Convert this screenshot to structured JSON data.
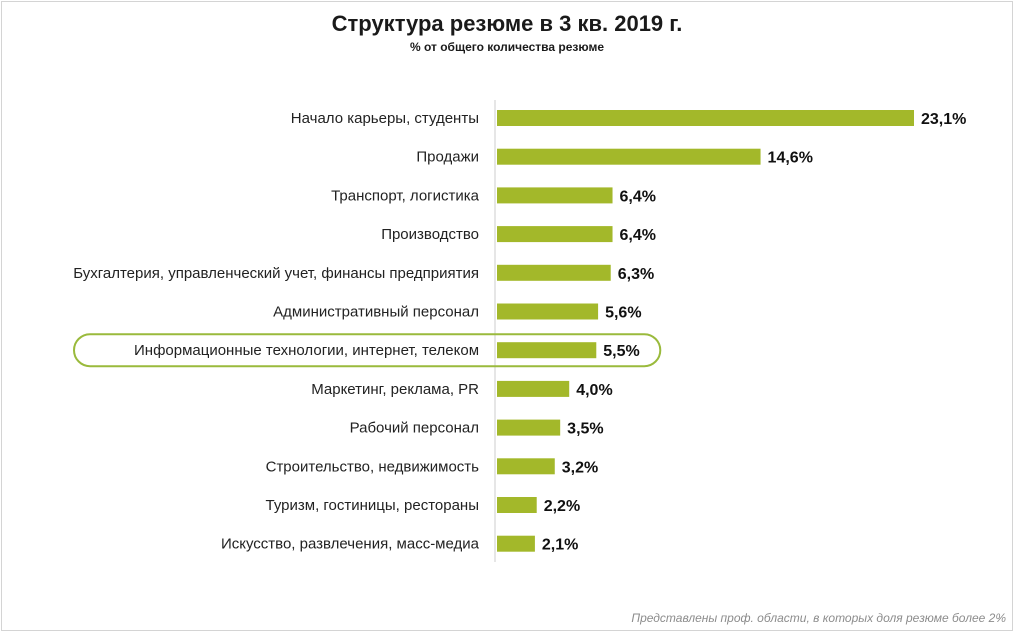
{
  "header": {
    "title": "Структура резюме в 3 кв. 2019 г.",
    "subtitle": "% от общего количества резюме"
  },
  "footnote": "Представлены проф. области, в которых доля резюме более 2%",
  "colors": {
    "bar": "#a3b82a",
    "highlight_border": "#9aba3c",
    "axis": "#cccccc"
  },
  "chart_data": {
    "type": "bar",
    "orientation": "horizontal",
    "title": "Структура резюме в 3 кв. 2019 г.",
    "subtitle": "% от общего количества резюме",
    "categories": [
      "Начало карьеры, студенты",
      "Продажи",
      "Транспорт, логистика",
      "Производство",
      "Бухгалтерия, управленческий учет, финансы предприятия",
      "Административный персонал",
      "Информационные технологии, интернет, телеком",
      "Маркетинг, реклама, PR",
      "Рабочий персонал",
      "Строительство, недвижимость",
      "Туризм, гостиницы, рестораны",
      "Искусство, развлечения, масс-медиа"
    ],
    "values": [
      23.1,
      14.6,
      6.4,
      6.4,
      6.3,
      5.6,
      5.5,
      4.0,
      3.5,
      3.2,
      2.2,
      2.1
    ],
    "value_labels": [
      "23,1%",
      "14,6%",
      "6,4%",
      "6,4%",
      "6,3%",
      "5,6%",
      "5,5%",
      "4,0%",
      "3,5%",
      "3,2%",
      "2,2%",
      "2,1%"
    ],
    "highlighted_category": "Информационные технологии, интернет, телеком",
    "xlim": [
      0,
      23.1
    ],
    "grid": false,
    "legend": "none"
  }
}
